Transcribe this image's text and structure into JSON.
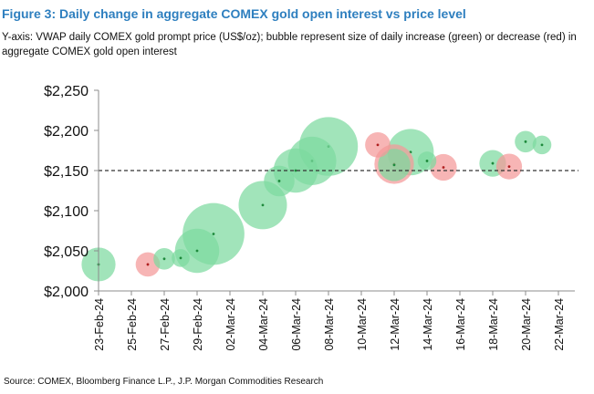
{
  "figure": {
    "title": "Figure 3: Daily change in aggregate COMEX gold open interest vs price level",
    "subtitle": "Y-axis: VWAP daily COMEX gold prompt price (US$/oz); bubble represent size of daily increase (green) or decrease (red) in aggregate COMEX gold open interest",
    "source": "Source: COMEX, Bloomberg Finance L.P., J.P. Morgan Commodities Research"
  },
  "colors": {
    "increase": "#7dd9a0",
    "decrease": "#f49999",
    "increase_dot": "#1e8a3c",
    "decrease_dot": "#b02020",
    "axis": "#8c8c8c",
    "reference": "#333333",
    "title": "#2e7fbf"
  },
  "chart_data": {
    "type": "bubble",
    "title": "Figure 3: Daily change in aggregate COMEX gold open interest vs price level",
    "ylabel": "VWAP daily COMEX gold prompt price (US$/oz)",
    "ylim": [
      2000,
      2250
    ],
    "y_ticks": [
      {
        "value": 2000,
        "label": "$2,000"
      },
      {
        "value": 2050,
        "label": "$2,050"
      },
      {
        "value": 2100,
        "label": "$2,100"
      },
      {
        "value": 2150,
        "label": "$2,150"
      },
      {
        "value": 2200,
        "label": "$2,200"
      },
      {
        "value": 2250,
        "label": "$2,250"
      }
    ],
    "x_range_days": [
      0,
      29
    ],
    "x_ticks": [
      {
        "day": 0,
        "label": "23-Feb-24"
      },
      {
        "day": 2,
        "label": "25-Feb-24"
      },
      {
        "day": 4,
        "label": "27-Feb-24"
      },
      {
        "day": 6,
        "label": "29-Feb-24"
      },
      {
        "day": 8,
        "label": "02-Mar-24"
      },
      {
        "day": 10,
        "label": "04-Mar-24"
      },
      {
        "day": 12,
        "label": "06-Mar-24"
      },
      {
        "day": 14,
        "label": "08-Mar-24"
      },
      {
        "day": 16,
        "label": "10-Mar-24"
      },
      {
        "day": 18,
        "label": "12-Mar-24"
      },
      {
        "day": 20,
        "label": "14-Mar-24"
      },
      {
        "day": 22,
        "label": "16-Mar-24"
      },
      {
        "day": 24,
        "label": "18-Mar-24"
      },
      {
        "day": 26,
        "label": "20-Mar-24"
      },
      {
        "day": 28,
        "label": "22-Mar-24"
      }
    ],
    "reference_line": {
      "value": 2150,
      "style": "dashed"
    },
    "series": [
      {
        "name": "Increase in open interest",
        "color": "increase",
        "points": [
          {
            "date": "23-Feb-24",
            "day": 0,
            "price": 2033,
            "size": 4
          },
          {
            "date": "27-Feb-24",
            "day": 4,
            "price": 2040,
            "size": 1
          },
          {
            "date": "28-Feb-24",
            "day": 5,
            "price": 2041,
            "size": 0.5
          },
          {
            "date": "29-Feb-24",
            "day": 6,
            "price": 2050,
            "size": 8
          },
          {
            "date": "01-Mar-24",
            "day": 7,
            "price": 2071,
            "size": 18
          },
          {
            "date": "04-Mar-24",
            "day": 10,
            "price": 2107,
            "size": 10
          },
          {
            "date": "05-Mar-24",
            "day": 11,
            "price": 2137,
            "size": 3
          },
          {
            "date": "06-Mar-24",
            "day": 12,
            "price": 2150,
            "size": 8
          },
          {
            "date": "07-Mar-24",
            "day": 13,
            "price": 2162,
            "size": 10
          },
          {
            "date": "08-Mar-24",
            "day": 14,
            "price": 2180,
            "size": 16
          },
          {
            "date": "12-Mar-24",
            "day": 18,
            "price": 2157,
            "size": 3.5
          },
          {
            "date": "13-Mar-24",
            "day": 19,
            "price": 2173,
            "size": 9
          },
          {
            "date": "14-Mar-24",
            "day": 20,
            "price": 2162,
            "size": 0.6
          },
          {
            "date": "18-Mar-24",
            "day": 24,
            "price": 2159,
            "size": 2
          },
          {
            "date": "20-Mar-24",
            "day": 26,
            "price": 2186,
            "size": 1
          },
          {
            "date": "21-Mar-24",
            "day": 27,
            "price": 2182,
            "size": 0.6
          }
        ]
      },
      {
        "name": "Decrease in open interest",
        "color": "decrease",
        "points": [
          {
            "date": "26-Feb-24",
            "day": 3,
            "price": 2033,
            "size": 1.5
          },
          {
            "date": "11-Mar-24",
            "day": 17,
            "price": 2182,
            "size": 1.7
          },
          {
            "date": "12-Mar-24",
            "day": 18,
            "price": 2158,
            "size": 6
          },
          {
            "date": "15-Mar-24",
            "day": 21,
            "price": 2154,
            "size": 2
          },
          {
            "date": "19-Mar-24",
            "day": 25,
            "price": 2155,
            "size": 1.8
          }
        ]
      }
    ]
  }
}
